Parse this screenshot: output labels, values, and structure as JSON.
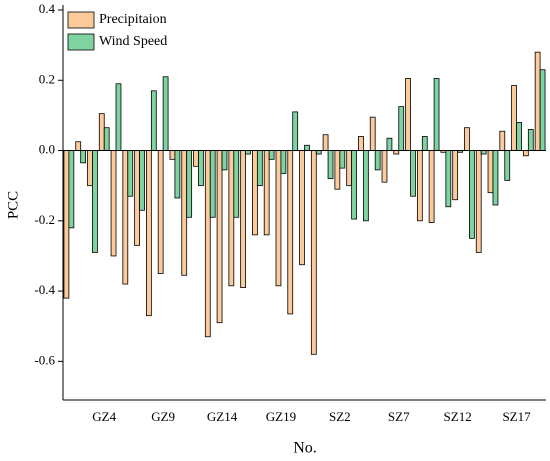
{
  "chart_data": {
    "type": "bar",
    "y_label": "PCC",
    "x_label": "No.",
    "categories": [
      null,
      null,
      null,
      "GZ4",
      null,
      null,
      null,
      null,
      "GZ9",
      null,
      null,
      null,
      null,
      "GZ14",
      null,
      null,
      null,
      null,
      "GZ19",
      null,
      null,
      null,
      null,
      "SZ2",
      null,
      null,
      null,
      null,
      "SZ7",
      null,
      null,
      null,
      null,
      "SZ12",
      null,
      null,
      null,
      null,
      "SZ17",
      null,
      null
    ],
    "series": [
      {
        "name": "Precipitaion",
        "color": "#fbcb9c",
        "values": [
          -0.42,
          0.025,
          -0.1,
          0.105,
          -0.3,
          -0.38,
          -0.27,
          -0.47,
          -0.35,
          -0.025,
          -0.355,
          -0.045,
          -0.53,
          -0.49,
          -0.385,
          -0.39,
          -0.24,
          -0.24,
          -0.385,
          -0.465,
          -0.325,
          -0.58,
          0.045,
          -0.11,
          -0.1,
          0.04,
          0.095,
          -0.09,
          -0.01,
          0.205,
          -0.2,
          -0.205,
          -0.005,
          -0.14,
          0.065,
          -0.29,
          -0.12,
          0.055,
          0.185,
          -0.015,
          0.28
        ]
      },
      {
        "name": "Wind Speed",
        "color": "#7fd3a0",
        "values": [
          -0.22,
          -0.035,
          -0.29,
          0.065,
          0.19,
          -0.13,
          -0.17,
          0.17,
          0.21,
          -0.135,
          -0.19,
          -0.1,
          -0.19,
          -0.055,
          -0.19,
          -0.01,
          -0.1,
          -0.025,
          -0.065,
          0.11,
          0.015,
          -0.01,
          -0.08,
          -0.05,
          -0.195,
          -0.2,
          -0.055,
          0.035,
          0.125,
          -0.13,
          0.04,
          0.205,
          -0.16,
          -0.005,
          -0.25,
          -0.01,
          -0.155,
          -0.085,
          0.08,
          0.06,
          0.23
        ]
      }
    ],
    "ylim": [
      -0.71,
      0.4
    ],
    "yticks": [
      -0.6,
      -0.4,
      -0.2,
      {
        "value": 0,
        "label": "0.0"
      },
      0.2,
      0.4
    ],
    "legend": "top-left",
    "zero_line": true
  }
}
